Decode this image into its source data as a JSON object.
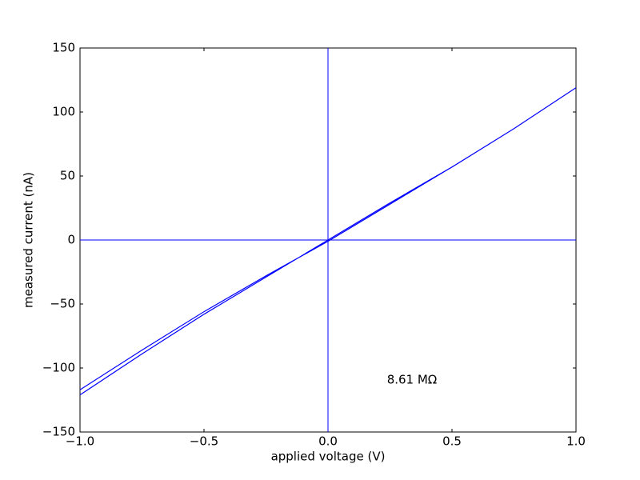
{
  "chart_data": {
    "type": "line",
    "xlabel": "applied voltage (V)",
    "ylabel": "measured current (nA)",
    "annotation": "8.61 MΩ",
    "x": [
      -1,
      -0.75,
      -0.5,
      -0.25,
      0,
      0.25,
      0.5,
      0.75,
      1,
      0.75,
      0.5,
      0.25,
      0,
      -0.25,
      -0.5,
      -0.75,
      -1
    ],
    "series": [
      {
        "color": "#0000ff",
        "values": [
          -121,
          -89,
          -58,
          -29,
          0,
          29,
          57,
          87,
          119,
          87,
          57,
          28,
          -1,
          -28,
          -56,
          -86,
          -117
        ]
      }
    ],
    "xlim": [
      -1,
      1
    ],
    "xticks": [
      {
        "value": -1,
        "label": "−1.0"
      },
      {
        "value": -0.5,
        "label": "−0.5"
      },
      {
        "value": 0,
        "label": "0.0"
      },
      {
        "value": 0.5,
        "label": "0.5"
      },
      {
        "value": 1,
        "label": "1.0"
      }
    ],
    "ylim": [
      -150,
      150
    ],
    "yticks": [
      {
        "value": -150,
        "label": "−150"
      },
      {
        "value": -100,
        "label": "−100"
      },
      {
        "value": -50,
        "label": "−50"
      },
      0,
      50,
      100,
      150
    ],
    "zero_lines": true
  }
}
